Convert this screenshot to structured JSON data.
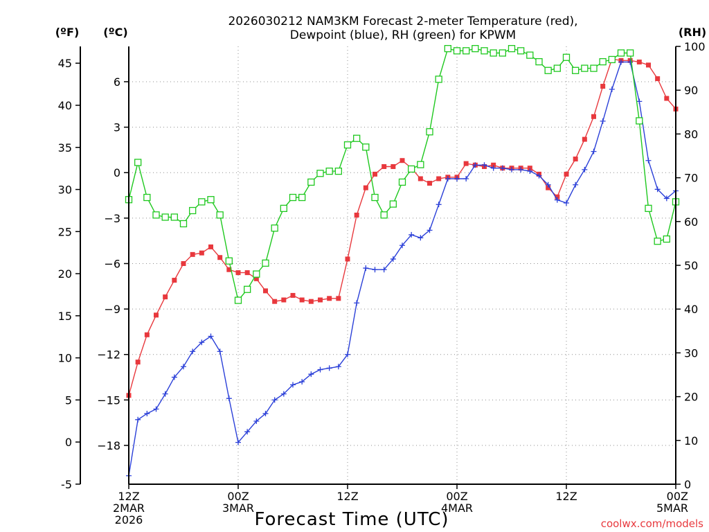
{
  "chart_data": {
    "type": "line",
    "title_line1": "2026030212 NAM3KM Forecast 2-meter Temperature (red),",
    "title_line2": "Dewpoint (blue), RH (green) for KPWM",
    "xlabel": "Forecast Time (UTC)",
    "watermark": "coolwx.com/models",
    "y_left_outer_label": "(ºF)",
    "y_left_inner_label": "(ºC)",
    "y_right_label": "(RH)",
    "y_f_ticks": [
      -5,
      0,
      5,
      10,
      15,
      20,
      25,
      30,
      35,
      40,
      45
    ],
    "y_c_ticks": [
      -18,
      -15,
      -12,
      -9,
      -6,
      -3,
      0,
      3,
      6
    ],
    "y_rh_ticks": [
      0,
      10,
      20,
      30,
      40,
      50,
      60,
      70,
      80,
      90,
      100
    ],
    "ylim_c": [
      -20.56,
      8.33
    ],
    "ylim_rh": [
      0,
      100
    ],
    "xlim_hours": [
      0,
      60
    ],
    "grid": true,
    "x_ticks": [
      {
        "hour": 0,
        "lines": [
          "12Z",
          "2MAR",
          "2026"
        ]
      },
      {
        "hour": 12,
        "lines": [
          "00Z",
          "3MAR"
        ]
      },
      {
        "hour": 24,
        "lines": [
          "12Z"
        ]
      },
      {
        "hour": 36,
        "lines": [
          "00Z",
          "4MAR"
        ]
      },
      {
        "hour": 48,
        "lines": [
          "12Z"
        ]
      },
      {
        "hour": 60,
        "lines": [
          "00Z",
          "5MAR"
        ]
      }
    ],
    "series": [
      {
        "name": "Temperature",
        "unit": "C",
        "color": "#e8383d",
        "marker": "filled-square",
        "x": [
          0,
          1,
          2,
          3,
          4,
          5,
          6,
          7,
          8,
          9,
          10,
          11,
          12,
          13,
          14,
          15,
          16,
          17,
          18,
          19,
          20,
          21,
          22,
          23,
          24,
          25,
          26,
          27,
          28,
          29,
          30,
          31,
          32,
          33,
          34,
          35,
          36,
          37,
          38,
          39,
          40,
          41,
          42,
          43,
          44,
          45,
          46,
          47,
          48,
          49,
          50,
          51,
          52,
          53,
          54,
          55,
          56,
          57,
          58,
          59,
          60
        ],
        "values": [
          -14.7,
          -12.5,
          -10.7,
          -9.4,
          -8.2,
          -7.1,
          -6.0,
          -5.4,
          -5.3,
          -4.9,
          -5.6,
          -6.4,
          -6.6,
          -6.6,
          -7.0,
          -7.8,
          -8.5,
          -8.4,
          -8.1,
          -8.4,
          -8.5,
          -8.4,
          -8.3,
          -8.3,
          -5.7,
          -2.8,
          -1.0,
          -0.1,
          0.4,
          0.4,
          0.8,
          0.3,
          -0.4,
          -0.7,
          -0.4,
          -0.3,
          -0.3,
          0.6,
          0.5,
          0.4,
          0.5,
          0.3,
          0.3,
          0.3,
          0.3,
          -0.1,
          -1.0,
          -1.6,
          -0.1,
          0.9,
          2.2,
          3.7,
          5.7,
          7.5,
          7.4,
          7.4,
          7.3,
          7.1,
          6.2,
          4.9,
          4.2
        ]
      },
      {
        "name": "Dewpoint",
        "unit": "C",
        "color": "#2a3fd8",
        "marker": "plus",
        "x": [
          0,
          1,
          2,
          3,
          4,
          5,
          6,
          7,
          8,
          9,
          10,
          11,
          12,
          13,
          14,
          15,
          16,
          17,
          18,
          19,
          20,
          21,
          22,
          23,
          24,
          25,
          26,
          27,
          28,
          29,
          30,
          31,
          32,
          33,
          34,
          35,
          36,
          37,
          38,
          39,
          40,
          41,
          42,
          43,
          44,
          45,
          46,
          47,
          48,
          49,
          50,
          51,
          52,
          53,
          54,
          55,
          56,
          57,
          58,
          59,
          60
        ],
        "values": [
          -20.0,
          -16.3,
          -15.9,
          -15.6,
          -14.6,
          -13.5,
          -12.8,
          -11.8,
          -11.2,
          -10.8,
          -11.8,
          -14.9,
          -17.8,
          -17.1,
          -16.4,
          -15.9,
          -15.0,
          -14.6,
          -14.0,
          -13.8,
          -13.3,
          -13.0,
          -12.9,
          -12.8,
          -12.0,
          -8.6,
          -6.3,
          -6.4,
          -6.4,
          -5.7,
          -4.8,
          -4.1,
          -4.3,
          -3.8,
          -2.1,
          -0.4,
          -0.4,
          -0.4,
          0.5,
          0.5,
          0.3,
          0.3,
          0.2,
          0.2,
          0.1,
          -0.2,
          -0.8,
          -1.8,
          -2.0,
          -0.8,
          0.2,
          1.4,
          3.4,
          5.5,
          7.3,
          7.3,
          4.7,
          0.8,
          -1.1,
          -1.7,
          -1.2
        ]
      },
      {
        "name": "RH",
        "unit": "%",
        "color": "#1ec81e",
        "marker": "open-square",
        "x": [
          0,
          1,
          2,
          3,
          4,
          5,
          6,
          7,
          8,
          9,
          10,
          11,
          12,
          13,
          14,
          15,
          16,
          17,
          18,
          19,
          20,
          21,
          22,
          23,
          24,
          25,
          26,
          27,
          28,
          29,
          30,
          31,
          32,
          33,
          34,
          35,
          36,
          37,
          38,
          39,
          40,
          41,
          42,
          43,
          44,
          45,
          46,
          47,
          48,
          49,
          50,
          51,
          52,
          53,
          54,
          55,
          56,
          57,
          58,
          59,
          60
        ],
        "values": [
          65.0,
          73.5,
          65.5,
          61.5,
          61.0,
          61.0,
          59.5,
          62.5,
          64.5,
          65.0,
          61.5,
          51.0,
          42.0,
          44.5,
          48.0,
          50.5,
          58.5,
          63.0,
          65.5,
          65.5,
          69.0,
          71.0,
          71.5,
          71.5,
          77.5,
          79.0,
          77.0,
          65.5,
          61.5,
          64.0,
          69.0,
          72.0,
          73.0,
          80.5,
          92.5,
          99.5,
          99.0,
          99.0,
          99.5,
          99.0,
          98.5,
          98.5,
          99.5,
          99.0,
          98.0,
          96.5,
          94.5,
          95.0,
          97.5,
          94.5,
          95.0,
          95.0,
          96.5,
          97.0,
          98.5,
          98.5,
          83.0,
          63.0,
          55.5,
          56.0,
          64.5
        ]
      }
    ]
  }
}
